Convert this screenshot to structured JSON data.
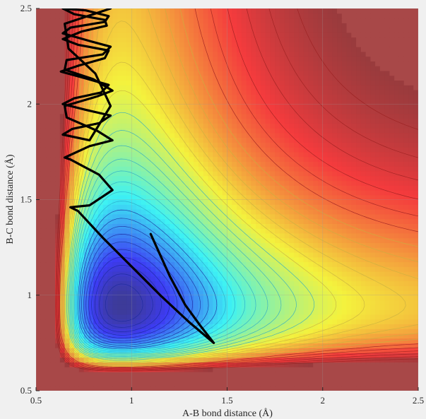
{
  "chart_data": {
    "type": "contour",
    "title": "",
    "xlabel": "A-B bond distance (Å)",
    "ylabel": "B-C bond distance (Å)",
    "xlim": [
      0.5,
      2.5
    ],
    "ylim": [
      0.5,
      2.5
    ],
    "x_ticks": [
      0.5,
      1,
      1.5,
      2,
      2.5
    ],
    "x_tick_labels": [
      "0.5",
      "1",
      "1.5",
      "2",
      "2.5"
    ],
    "y_ticks": [
      0.5,
      1,
      1.5,
      2,
      2.5
    ],
    "y_tick_labels": [
      "0.5",
      "1",
      "1.5",
      "2",
      "2.5"
    ],
    "grid": true,
    "colormap": "jet (blue = low energy, dark red = high energy)",
    "colors": {
      "plateau": "#a84848",
      "trajectory": "#000000",
      "grid": "#9a9a9a"
    },
    "contour_levels": 30,
    "trajectory": {
      "x": [
        1.1,
        1.2,
        1.28,
        1.36,
        1.43,
        1.3,
        1.15,
        1.0,
        0.85,
        0.72,
        0.68,
        0.78,
        0.9,
        0.83,
        0.68,
        0.65,
        0.78,
        0.9,
        0.82,
        0.66,
        0.65,
        0.82,
        0.9,
        0.8,
        0.65,
        0.66,
        0.85,
        0.89,
        0.78,
        0.64,
        0.68,
        0.86,
        0.88,
        0.76,
        0.64,
        0.7,
        0.86,
        0.87,
        0.74,
        0.64,
        0.72,
        0.88,
        0.86,
        0.72,
        0.63,
        0.74,
        0.88,
        0.84,
        0.7,
        0.64,
        0.76,
        0.89,
        0.83,
        0.69,
        0.64,
        0.78,
        0.89,
        0.81,
        0.67,
        0.65,
        0.8,
        0.89
      ],
      "y": [
        1.32,
        1.1,
        0.95,
        0.84,
        0.75,
        0.86,
        1.0,
        1.15,
        1.3,
        1.44,
        1.46,
        1.47,
        1.55,
        1.63,
        1.71,
        1.72,
        1.78,
        1.81,
        1.86,
        1.93,
        1.99,
        2.04,
        2.07,
        2.13,
        2.18,
        2.23,
        2.26,
        2.3,
        2.33,
        2.37,
        2.4,
        2.43,
        2.46,
        2.49,
        2.5,
        2.47,
        2.44,
        2.41,
        2.38,
        2.34,
        2.31,
        2.28,
        2.24,
        2.2,
        2.17,
        2.14,
        2.1,
        2.06,
        2.03,
        2.0,
        1.97,
        1.94,
        1.9,
        1.87,
        1.84,
        1.81,
        1.99,
        2.16,
        2.29,
        2.42,
        2.47,
        2.5
      ]
    }
  }
}
